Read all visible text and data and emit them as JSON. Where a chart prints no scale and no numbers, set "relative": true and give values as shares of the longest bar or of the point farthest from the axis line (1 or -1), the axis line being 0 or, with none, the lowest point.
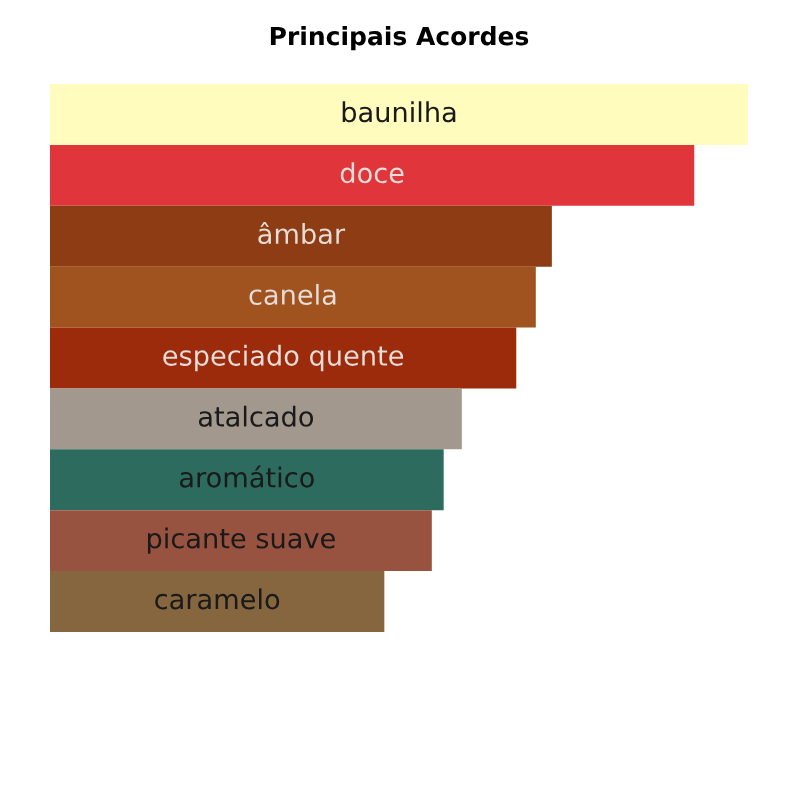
{
  "chart_data": {
    "type": "bar",
    "title": "Principais Acordes",
    "orientation": "horizontal",
    "relative": true,
    "categories": [
      "baunilha",
      "doce",
      "âmbar",
      "canela",
      "especiado quente",
      "atalcado",
      "aromático",
      "picante suave",
      "caramelo"
    ],
    "values": [
      1,
      0.923,
      0.719,
      0.696,
      0.668,
      0.59,
      0.564,
      0.547,
      0.479
    ],
    "colors": [
      "#fffcbe",
      "#e0363b",
      "#8e3c13",
      "#a0531f",
      "#9c2b0b",
      "#a3988d",
      "#2d6b5f",
      "#975340",
      "#86663e"
    ]
  }
}
